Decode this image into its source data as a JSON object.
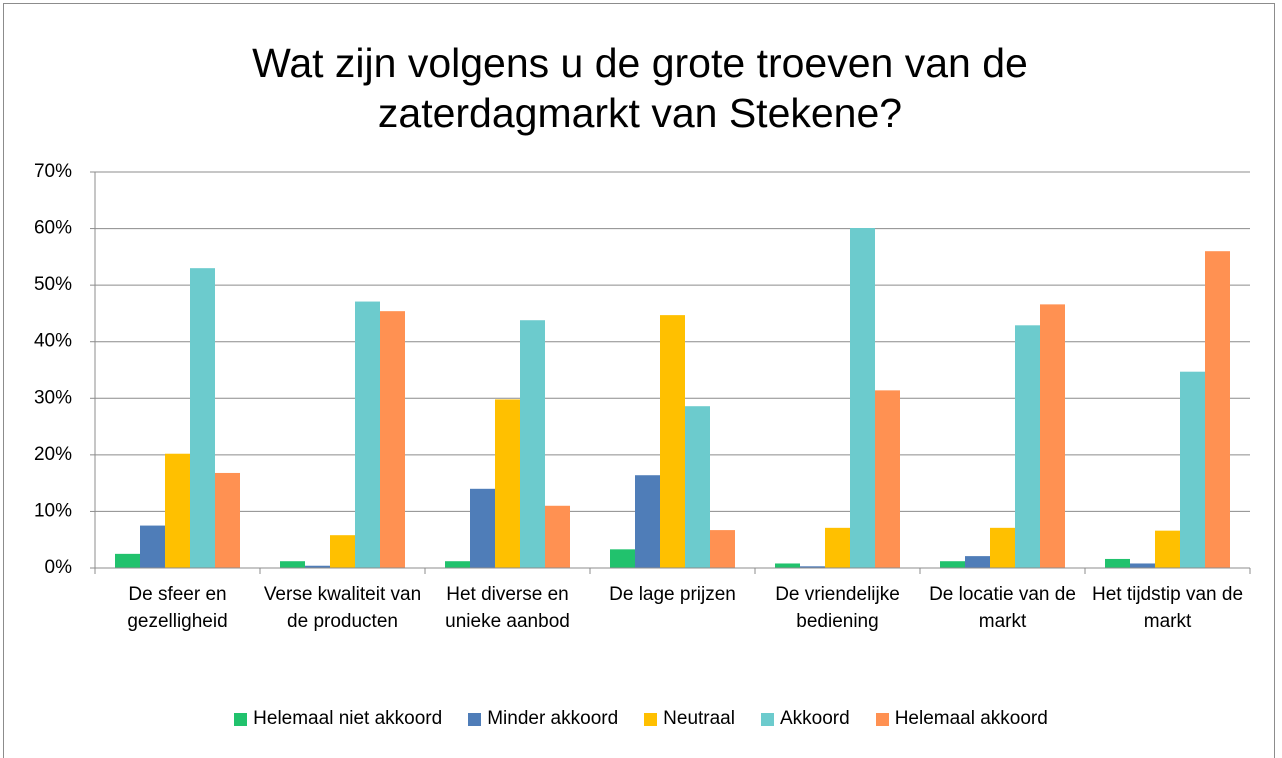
{
  "chart_data": {
    "type": "bar",
    "title": "Wat zijn volgens u de grote troeven van de zaterdagmarkt van Stekene?",
    "categories": [
      "De sfeer en gezelligheid",
      "Verse kwaliteit van de producten",
      "Het diverse en unieke aanbod",
      "De lage prijzen",
      "De vriendelijke bediening",
      "De locatie van de markt",
      "Het tijdstip van de markt"
    ],
    "series": [
      {
        "name": "Helemaal niet akkoord",
        "color": "#21c26d",
        "values": [
          2.5,
          1.2,
          1.2,
          3.3,
          0.8,
          1.2,
          1.6
        ]
      },
      {
        "name": "Minder akkoord",
        "color": "#4f7db8",
        "values": [
          7.5,
          0.4,
          14,
          16.4,
          0.3,
          2.1,
          0.8
        ]
      },
      {
        "name": "Neutraal",
        "color": "#ffc000",
        "values": [
          20.2,
          5.8,
          29.8,
          44.7,
          7.1,
          7.1,
          6.6
        ]
      },
      {
        "name": "Akkoord",
        "color": "#6ccbcd",
        "values": [
          53,
          47.1,
          43.8,
          28.6,
          60.1,
          42.9,
          34.7
        ]
      },
      {
        "name": "Helemaal akkoord",
        "color": "#ff9152",
        "values": [
          16.8,
          45.4,
          11,
          6.7,
          31.4,
          46.6,
          56
        ]
      }
    ],
    "ylim": [
      0,
      70
    ],
    "yticks": [
      {
        "value": 0,
        "label": "0%"
      },
      {
        "value": 10,
        "label": "10%"
      },
      {
        "value": 20,
        "label": "20%"
      },
      {
        "value": 30,
        "label": "30%"
      },
      {
        "value": 40,
        "label": "40%"
      },
      {
        "value": 50,
        "label": "50%"
      },
      {
        "value": 60,
        "label": "60%"
      },
      {
        "value": 70,
        "label": "70%"
      }
    ],
    "grid": true,
    "legend": "bottom"
  }
}
